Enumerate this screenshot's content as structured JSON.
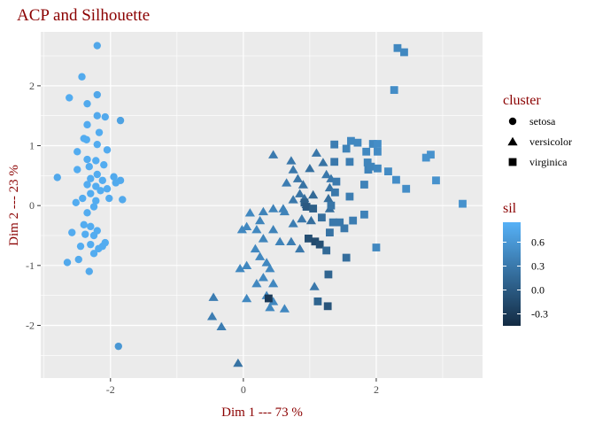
{
  "chart_data": {
    "type": "scatter",
    "title": "ACP and Silhouette",
    "xlabel": "Dim 1 --- 73 %",
    "ylabel": "Dim 2 --- 23 %",
    "xlim": [
      -3.05,
      3.6
    ],
    "ylim": [
      -2.88,
      2.9
    ],
    "x_ticks": [
      -2,
      0,
      2
    ],
    "y_ticks": [
      -2,
      -1,
      0,
      1,
      2
    ],
    "grid": true,
    "legend_position": "right",
    "shape_legend": {
      "title": "cluster",
      "entries": [
        "setosa",
        "versicolor",
        "virginica"
      ]
    },
    "color_legend": {
      "title": "sil",
      "range": [
        -0.45,
        0.85
      ],
      "ticks": [
        0.6,
        0.3,
        0.0,
        -0.3
      ],
      "tick_labels": [
        "0.6",
        "0.3",
        "0.0",
        "-0.3"
      ],
      "low_color": "#132b43",
      "high_color": "#56b1f7"
    },
    "colors": {
      "panel": "#ebebeb",
      "grid": "#ffffff",
      "title": "#8b0000"
    },
    "series": [
      {
        "name": "setosa",
        "points": [
          {
            "x": -2.2,
            "y": 2.67,
            "sil": 0.75
          },
          {
            "x": -2.43,
            "y": 2.15,
            "sil": 0.78
          },
          {
            "x": -2.62,
            "y": 1.8,
            "sil": 0.8
          },
          {
            "x": -2.2,
            "y": 1.85,
            "sil": 0.75
          },
          {
            "x": -2.35,
            "y": 1.7,
            "sil": 0.78
          },
          {
            "x": -2.2,
            "y": 1.5,
            "sil": 0.77
          },
          {
            "x": -2.08,
            "y": 1.48,
            "sil": 0.77
          },
          {
            "x": -1.85,
            "y": 1.42,
            "sil": 0.7
          },
          {
            "x": -2.35,
            "y": 1.35,
            "sil": 0.79
          },
          {
            "x": -2.17,
            "y": 1.22,
            "sil": 0.8
          },
          {
            "x": -2.4,
            "y": 1.12,
            "sil": 0.8
          },
          {
            "x": -2.36,
            "y": 1.1,
            "sil": 0.8
          },
          {
            "x": -2.2,
            "y": 1.02,
            "sil": 0.8
          },
          {
            "x": -2.05,
            "y": 0.93,
            "sil": 0.79
          },
          {
            "x": -2.5,
            "y": 0.9,
            "sil": 0.8
          },
          {
            "x": -2.35,
            "y": 0.77,
            "sil": 0.8
          },
          {
            "x": -2.22,
            "y": 0.75,
            "sil": 0.8
          },
          {
            "x": -2.1,
            "y": 0.68,
            "sil": 0.8
          },
          {
            "x": -2.32,
            "y": 0.65,
            "sil": 0.8
          },
          {
            "x": -2.5,
            "y": 0.6,
            "sil": 0.8
          },
          {
            "x": -2.2,
            "y": 0.52,
            "sil": 0.8
          },
          {
            "x": -1.95,
            "y": 0.48,
            "sil": 0.78
          },
          {
            "x": -2.8,
            "y": 0.47,
            "sil": 0.76
          },
          {
            "x": -2.3,
            "y": 0.45,
            "sil": 0.8
          },
          {
            "x": -1.85,
            "y": 0.42,
            "sil": 0.77
          },
          {
            "x": -2.12,
            "y": 0.42,
            "sil": 0.8
          },
          {
            "x": -1.92,
            "y": 0.38,
            "sil": 0.78
          },
          {
            "x": -2.35,
            "y": 0.35,
            "sil": 0.8
          },
          {
            "x": -2.22,
            "y": 0.32,
            "sil": 0.8
          },
          {
            "x": -2.05,
            "y": 0.28,
            "sil": 0.8
          },
          {
            "x": -2.15,
            "y": 0.25,
            "sil": 0.8
          },
          {
            "x": -2.3,
            "y": 0.2,
            "sil": 0.8
          },
          {
            "x": -2.42,
            "y": 0.12,
            "sil": 0.8
          },
          {
            "x": -2.02,
            "y": 0.12,
            "sil": 0.79
          },
          {
            "x": -2.22,
            "y": 0.08,
            "sil": 0.8
          },
          {
            "x": -1.82,
            "y": 0.1,
            "sil": 0.77
          },
          {
            "x": -2.52,
            "y": 0.05,
            "sil": 0.8
          },
          {
            "x": -2.25,
            "y": -0.02,
            "sil": 0.8
          },
          {
            "x": -2.35,
            "y": -0.12,
            "sil": 0.8
          },
          {
            "x": -2.4,
            "y": -0.32,
            "sil": 0.8
          },
          {
            "x": -2.3,
            "y": -0.35,
            "sil": 0.8
          },
          {
            "x": -2.2,
            "y": -0.42,
            "sil": 0.8
          },
          {
            "x": -2.58,
            "y": -0.45,
            "sil": 0.79
          },
          {
            "x": -2.38,
            "y": -0.48,
            "sil": 0.8
          },
          {
            "x": -2.25,
            "y": -0.5,
            "sil": 0.8
          },
          {
            "x": -2.3,
            "y": -0.65,
            "sil": 0.8
          },
          {
            "x": -2.45,
            "y": -0.68,
            "sil": 0.8
          },
          {
            "x": -2.08,
            "y": -0.62,
            "sil": 0.8
          },
          {
            "x": -2.18,
            "y": -0.72,
            "sil": 0.8
          },
          {
            "x": -2.12,
            "y": -0.68,
            "sil": 0.8
          },
          {
            "x": -2.25,
            "y": -0.8,
            "sil": 0.8
          },
          {
            "x": -2.48,
            "y": -0.9,
            "sil": 0.78
          },
          {
            "x": -2.65,
            "y": -0.95,
            "sil": 0.77
          },
          {
            "x": -2.32,
            "y": -1.1,
            "sil": 0.77
          },
          {
            "x": -1.88,
            "y": -2.35,
            "sil": 0.6
          }
        ]
      },
      {
        "name": "versicolor",
        "points": [
          {
            "x": 0.45,
            "y": 0.85,
            "sil": 0.32
          },
          {
            "x": 0.72,
            "y": 0.75,
            "sil": 0.3
          },
          {
            "x": 1.1,
            "y": 0.88,
            "sil": 0.28
          },
          {
            "x": 0.75,
            "y": 0.6,
            "sil": 0.3
          },
          {
            "x": 0.82,
            "y": 0.45,
            "sil": 0.28
          },
          {
            "x": 1.0,
            "y": 0.62,
            "sil": 0.22
          },
          {
            "x": 0.9,
            "y": 0.35,
            "sil": 0.25
          },
          {
            "x": 0.65,
            "y": 0.38,
            "sil": 0.35
          },
          {
            "x": 0.85,
            "y": 0.2,
            "sil": 0.25
          },
          {
            "x": 0.92,
            "y": 0.12,
            "sil": 0.2
          },
          {
            "x": 0.75,
            "y": 0.1,
            "sil": 0.3
          },
          {
            "x": 0.95,
            "y": 0.02,
            "sil": 0.1
          },
          {
            "x": 1.05,
            "y": 0.18,
            "sil": 0.15
          },
          {
            "x": 1.2,
            "y": 0.72,
            "sil": 0.25
          },
          {
            "x": 1.25,
            "y": 0.52,
            "sil": 0.3
          },
          {
            "x": 1.32,
            "y": 0.45,
            "sil": 0.3
          },
          {
            "x": 1.3,
            "y": 0.3,
            "sil": 0.25
          },
          {
            "x": 1.28,
            "y": 0.12,
            "sil": 0.2
          },
          {
            "x": 1.3,
            "y": -0.05,
            "sil": 0.2
          },
          {
            "x": 0.6,
            "y": -0.05,
            "sil": 0.4
          },
          {
            "x": 0.62,
            "y": -0.1,
            "sil": 0.4
          },
          {
            "x": 0.45,
            "y": -0.05,
            "sil": 0.4
          },
          {
            "x": 0.3,
            "y": -0.1,
            "sil": 0.4
          },
          {
            "x": 0.1,
            "y": -0.12,
            "sil": 0.45
          },
          {
            "x": 0.25,
            "y": -0.25,
            "sil": 0.42
          },
          {
            "x": 0.05,
            "y": -0.35,
            "sil": 0.45
          },
          {
            "x": -0.02,
            "y": -0.4,
            "sil": 0.45
          },
          {
            "x": 0.2,
            "y": -0.4,
            "sil": 0.45
          },
          {
            "x": 0.45,
            "y": -0.4,
            "sil": 0.4
          },
          {
            "x": 0.75,
            "y": -0.3,
            "sil": 0.35
          },
          {
            "x": 0.88,
            "y": -0.22,
            "sil": 0.3
          },
          {
            "x": 1.02,
            "y": -0.25,
            "sil": 0.2
          },
          {
            "x": 0.3,
            "y": -0.55,
            "sil": 0.42
          },
          {
            "x": 0.55,
            "y": -0.6,
            "sil": 0.4
          },
          {
            "x": 0.72,
            "y": -0.6,
            "sil": 0.35
          },
          {
            "x": 0.85,
            "y": -0.72,
            "sil": 0.3
          },
          {
            "x": 0.18,
            "y": -0.72,
            "sil": 0.45
          },
          {
            "x": 0.25,
            "y": -0.85,
            "sil": 0.45
          },
          {
            "x": 0.35,
            "y": -0.95,
            "sil": 0.45
          },
          {
            "x": 0.05,
            "y": -1.0,
            "sil": 0.45
          },
          {
            "x": -0.05,
            "y": -1.05,
            "sil": 0.45
          },
          {
            "x": 0.4,
            "y": -1.05,
            "sil": 0.45
          },
          {
            "x": 0.3,
            "y": -1.2,
            "sil": 0.45
          },
          {
            "x": 0.2,
            "y": -1.3,
            "sil": 0.45
          },
          {
            "x": 0.45,
            "y": -1.3,
            "sil": 0.45
          },
          {
            "x": 0.05,
            "y": -1.55,
            "sil": 0.45
          },
          {
            "x": 0.35,
            "y": -1.5,
            "sil": 0.45
          },
          {
            "x": 0.45,
            "y": -1.6,
            "sil": 0.45
          },
          {
            "x": 0.62,
            "y": -1.72,
            "sil": 0.45
          },
          {
            "x": 0.4,
            "y": -1.7,
            "sil": 0.45
          },
          {
            "x": 1.07,
            "y": -1.35,
            "sil": 0.3
          },
          {
            "x": -0.45,
            "y": -1.53,
            "sil": 0.35
          },
          {
            "x": -0.47,
            "y": -1.85,
            "sil": 0.35
          },
          {
            "x": -0.33,
            "y": -2.02,
            "sil": 0.35
          },
          {
            "x": -0.08,
            "y": -2.63,
            "sil": 0.25
          }
        ]
      },
      {
        "name": "virginica",
        "points": [
          {
            "x": 2.32,
            "y": 2.63,
            "sil": 0.45
          },
          {
            "x": 2.42,
            "y": 2.56,
            "sil": 0.45
          },
          {
            "x": 2.27,
            "y": 1.93,
            "sil": 0.5
          },
          {
            "x": 1.37,
            "y": 1.02,
            "sil": 0.35
          },
          {
            "x": 1.62,
            "y": 1.08,
            "sil": 0.45
          },
          {
            "x": 1.72,
            "y": 1.05,
            "sil": 0.45
          },
          {
            "x": 1.95,
            "y": 1.03,
            "sil": 0.45
          },
          {
            "x": 2.02,
            "y": 1.03,
            "sil": 0.5
          },
          {
            "x": 1.55,
            "y": 0.95,
            "sil": 0.4
          },
          {
            "x": 1.85,
            "y": 0.9,
            "sil": 0.45
          },
          {
            "x": 2.02,
            "y": 0.9,
            "sil": 0.48
          },
          {
            "x": 2.82,
            "y": 0.85,
            "sil": 0.55
          },
          {
            "x": 2.75,
            "y": 0.8,
            "sil": 0.55
          },
          {
            "x": 1.37,
            "y": 0.73,
            "sil": 0.3
          },
          {
            "x": 1.6,
            "y": 0.73,
            "sil": 0.35
          },
          {
            "x": 1.87,
            "y": 0.72,
            "sil": 0.42
          },
          {
            "x": 1.88,
            "y": 0.6,
            "sil": 0.4
          },
          {
            "x": 1.92,
            "y": 0.65,
            "sil": 0.42
          },
          {
            "x": 2.02,
            "y": 0.62,
            "sil": 0.45
          },
          {
            "x": 2.18,
            "y": 0.57,
            "sil": 0.48
          },
          {
            "x": 2.3,
            "y": 0.43,
            "sil": 0.5
          },
          {
            "x": 2.45,
            "y": 0.28,
            "sil": 0.5
          },
          {
            "x": 2.9,
            "y": 0.42,
            "sil": 0.55
          },
          {
            "x": 1.4,
            "y": 0.4,
            "sil": 0.32
          },
          {
            "x": 1.82,
            "y": 0.35,
            "sil": 0.4
          },
          {
            "x": 1.38,
            "y": 0.22,
            "sil": 0.3
          },
          {
            "x": 1.6,
            "y": 0.15,
            "sil": 0.35
          },
          {
            "x": 1.32,
            "y": 0.0,
            "sil": 0.28
          },
          {
            "x": 3.3,
            "y": 0.03,
            "sil": 0.55
          },
          {
            "x": 0.92,
            "y": 0.05,
            "sil": 0.05
          },
          {
            "x": 0.95,
            "y": -0.02,
            "sil": 0.0
          },
          {
            "x": 1.05,
            "y": -0.05,
            "sil": 0.05
          },
          {
            "x": 1.82,
            "y": -0.15,
            "sil": 0.4
          },
          {
            "x": 1.18,
            "y": -0.2,
            "sil": 0.2
          },
          {
            "x": 1.35,
            "y": -0.28,
            "sil": 0.3
          },
          {
            "x": 1.45,
            "y": -0.28,
            "sil": 0.3
          },
          {
            "x": 1.65,
            "y": -0.25,
            "sil": 0.35
          },
          {
            "x": 1.52,
            "y": -0.38,
            "sil": 0.3
          },
          {
            "x": 1.3,
            "y": -0.45,
            "sil": 0.25
          },
          {
            "x": 0.98,
            "y": -0.55,
            "sil": -0.1
          },
          {
            "x": 1.08,
            "y": -0.6,
            "sil": -0.15
          },
          {
            "x": 1.15,
            "y": -0.65,
            "sil": -0.1
          },
          {
            "x": 1.25,
            "y": -0.75,
            "sil": 0.15
          },
          {
            "x": 2.0,
            "y": -0.7,
            "sil": 0.45
          },
          {
            "x": 1.55,
            "y": -0.87,
            "sil": 0.2
          },
          {
            "x": 1.28,
            "y": -1.15,
            "sil": 0.1
          },
          {
            "x": 0.38,
            "y": -1.55,
            "sil": -0.3
          },
          {
            "x": 1.12,
            "y": -1.6,
            "sil": 0.1
          },
          {
            "x": 1.27,
            "y": -1.68,
            "sil": -0.05
          }
        ]
      }
    ]
  }
}
